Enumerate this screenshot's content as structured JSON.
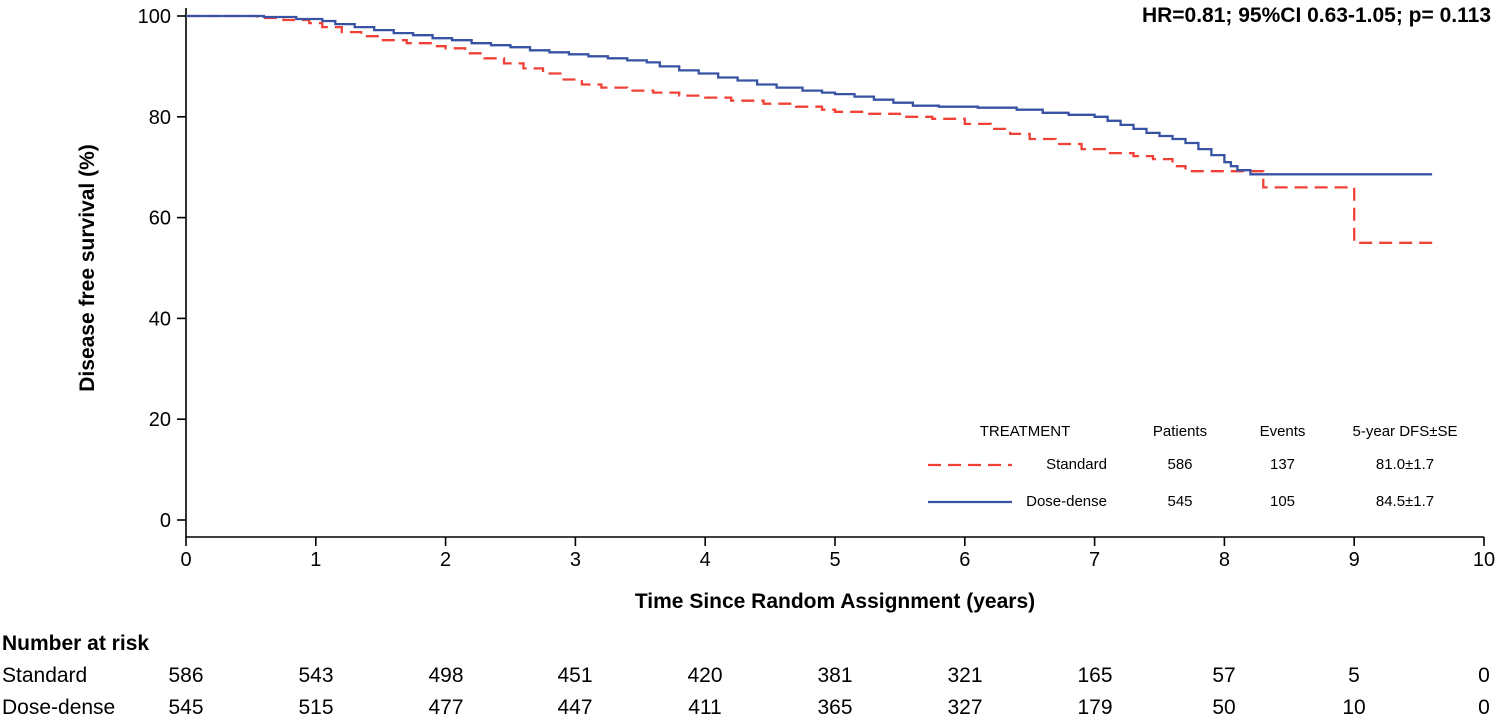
{
  "annotation": {
    "text": "HR=0.81; 95%CI 0.63-1.05; p= 0.113"
  },
  "colors": {
    "standard": "#ef4136",
    "dose_dense": "#3953a4",
    "axis": "#000000"
  },
  "chart_data": {
    "type": "line",
    "subtype": "kaplan-meier-step",
    "title": "",
    "xlabel": "Time Since Random Assignment (years)",
    "ylabel": "Disease free survival (%)",
    "xlim": [
      0,
      10
    ],
    "ylim": [
      0,
      100
    ],
    "x_ticks": [
      0,
      1,
      2,
      3,
      4,
      5,
      6,
      7,
      8,
      9,
      10
    ],
    "y_ticks": [
      0,
      20,
      40,
      60,
      80,
      100
    ],
    "grid": false,
    "legend_position": "inside-bottom-right",
    "series": [
      {
        "name": "Standard",
        "color": "#ef4136",
        "dash": "dashed",
        "points": [
          [
            0,
            100
          ],
          [
            0.55,
            99.6
          ],
          [
            0.75,
            99.2
          ],
          [
            0.95,
            98.6
          ],
          [
            1.05,
            97.8
          ],
          [
            1.2,
            96.8
          ],
          [
            1.35,
            96
          ],
          [
            1.5,
            95.2
          ],
          [
            1.7,
            94.6
          ],
          [
            1.9,
            94
          ],
          [
            2.0,
            93.6
          ],
          [
            2.15,
            92.6
          ],
          [
            2.3,
            91.6
          ],
          [
            2.45,
            90.6
          ],
          [
            2.6,
            89.6
          ],
          [
            2.75,
            88.6
          ],
          [
            2.9,
            87.4
          ],
          [
            3.05,
            86.4
          ],
          [
            3.2,
            85.8
          ],
          [
            3.4,
            85.2
          ],
          [
            3.6,
            84.8
          ],
          [
            3.8,
            84.2
          ],
          [
            4.0,
            83.8
          ],
          [
            4.2,
            83.2
          ],
          [
            4.45,
            82.6
          ],
          [
            4.7,
            82
          ],
          [
            4.9,
            81.4
          ],
          [
            5.0,
            81
          ],
          [
            5.25,
            80.6
          ],
          [
            5.5,
            80
          ],
          [
            5.75,
            79.6
          ],
          [
            6.0,
            78.6
          ],
          [
            6.2,
            77.6
          ],
          [
            6.35,
            76.6
          ],
          [
            6.5,
            75.6
          ],
          [
            6.7,
            74.6
          ],
          [
            6.9,
            73.6
          ],
          [
            7.1,
            72.8
          ],
          [
            7.3,
            72.2
          ],
          [
            7.45,
            71.6
          ],
          [
            7.6,
            70.2
          ],
          [
            7.7,
            69.2
          ],
          [
            8.25,
            69.2
          ],
          [
            8.3,
            66
          ],
          [
            8.95,
            66
          ],
          [
            9.0,
            55
          ],
          [
            9.65,
            55
          ]
        ]
      },
      {
        "name": "Dose-dense",
        "color": "#3953a4",
        "dash": "solid",
        "points": [
          [
            0,
            100
          ],
          [
            0.6,
            99.8
          ],
          [
            0.85,
            99.4
          ],
          [
            1.05,
            99
          ],
          [
            1.15,
            98.4
          ],
          [
            1.3,
            97.8
          ],
          [
            1.45,
            97.2
          ],
          [
            1.6,
            96.6
          ],
          [
            1.75,
            96.2
          ],
          [
            1.9,
            95.6
          ],
          [
            2.05,
            95.2
          ],
          [
            2.2,
            94.6
          ],
          [
            2.35,
            94.2
          ],
          [
            2.5,
            93.8
          ],
          [
            2.65,
            93.2
          ],
          [
            2.8,
            92.8
          ],
          [
            2.95,
            92.4
          ],
          [
            3.1,
            92
          ],
          [
            3.25,
            91.6
          ],
          [
            3.4,
            91.2
          ],
          [
            3.55,
            90.8
          ],
          [
            3.65,
            90
          ],
          [
            3.8,
            89.2
          ],
          [
            3.95,
            88.6
          ],
          [
            4.1,
            87.8
          ],
          [
            4.25,
            87.2
          ],
          [
            4.4,
            86.4
          ],
          [
            4.55,
            85.8
          ],
          [
            4.75,
            85.2
          ],
          [
            4.9,
            84.8
          ],
          [
            5.0,
            84.5
          ],
          [
            5.15,
            84
          ],
          [
            5.3,
            83.4
          ],
          [
            5.45,
            82.8
          ],
          [
            5.6,
            82.2
          ],
          [
            5.8,
            82
          ],
          [
            6.1,
            81.8
          ],
          [
            6.4,
            81.4
          ],
          [
            6.6,
            80.8
          ],
          [
            6.8,
            80.4
          ],
          [
            7.0,
            80
          ],
          [
            7.1,
            79.2
          ],
          [
            7.2,
            78.4
          ],
          [
            7.3,
            77.6
          ],
          [
            7.4,
            76.8
          ],
          [
            7.5,
            76.2
          ],
          [
            7.6,
            75.6
          ],
          [
            7.7,
            74.8
          ],
          [
            7.8,
            73.6
          ],
          [
            7.9,
            72.4
          ],
          [
            8.0,
            71
          ],
          [
            8.05,
            70.2
          ],
          [
            8.1,
            69.4
          ],
          [
            8.2,
            68.6
          ],
          [
            9.6,
            68.6
          ]
        ]
      }
    ],
    "legend": {
      "headers": [
        "TREATMENT",
        "Patients",
        "Events",
        "5-year DFS±SE"
      ],
      "rows": [
        {
          "name": "Standard",
          "patients": "586",
          "events": "137",
          "dfs": "81.0±1.7"
        },
        {
          "name": "Dose-dense",
          "patients": "545",
          "events": "105",
          "dfs": "84.5±1.7"
        }
      ]
    }
  },
  "risk_table": {
    "title": "Number at risk",
    "times": [
      0,
      1,
      2,
      3,
      4,
      5,
      6,
      7,
      8,
      9,
      10
    ],
    "rows": [
      {
        "name": "Standard",
        "values": [
          "586",
          "543",
          "498",
          "451",
          "420",
          "381",
          "321",
          "165",
          "57",
          "5",
          "0"
        ]
      },
      {
        "name": "Dose-dense",
        "values": [
          "545",
          "515",
          "477",
          "447",
          "411",
          "365",
          "327",
          "179",
          "50",
          "10",
          "0"
        ]
      }
    ]
  }
}
